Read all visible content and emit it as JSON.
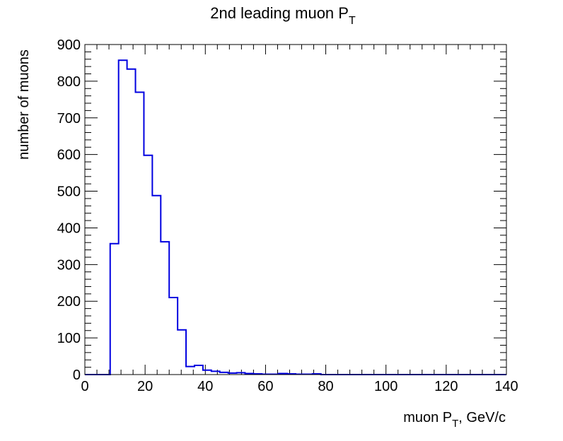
{
  "chart_data": {
    "type": "histogram",
    "title": "2nd leading muon P",
    "title_subscript": "T",
    "xlabel_main": "muon P",
    "xlabel_subscript": "T",
    "xlabel_suffix": ", GeV/c",
    "ylabel": "number of muons",
    "xlim": [
      0,
      140
    ],
    "ylim": [
      0,
      900
    ],
    "x_ticks": [
      0,
      20,
      40,
      60,
      80,
      100,
      120,
      140
    ],
    "y_ticks": [
      0,
      100,
      200,
      300,
      400,
      500,
      600,
      700,
      800,
      900
    ],
    "bin_width": 2.8,
    "bin_edges_start": 0,
    "values": [
      0,
      0,
      0,
      357,
      857,
      833,
      770,
      598,
      488,
      362,
      210,
      122,
      22,
      25,
      12,
      9,
      6,
      4,
      5,
      3,
      2,
      1,
      1,
      3,
      2,
      1,
      1,
      2,
      0,
      0,
      0,
      0,
      0,
      0,
      0,
      0,
      0,
      0,
      0,
      0,
      0,
      0,
      0,
      0,
      0,
      0,
      0,
      0,
      0,
      0
    ],
    "line_color": "#0000e0",
    "grid": false
  }
}
